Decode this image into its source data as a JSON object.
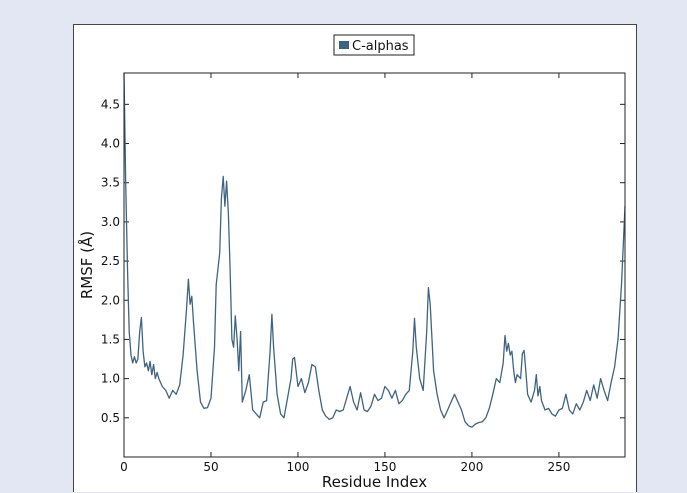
{
  "chart_data": {
    "type": "line",
    "title": "",
    "xlabel": "Residue Index",
    "ylabel": "RMSF (Å)",
    "xlim": [
      0,
      288
    ],
    "ylim": [
      0,
      4.9
    ],
    "xticks": [
      0,
      50,
      100,
      150,
      200,
      250
    ],
    "yticks": [
      0.5,
      1.0,
      1.5,
      2.0,
      2.5,
      3.0,
      3.5,
      4.0,
      4.5
    ],
    "grid": false,
    "legend_position": "top-center",
    "series": [
      {
        "name": "C-alphas",
        "color": "#3f6482",
        "points": [
          [
            0,
            4.9
          ],
          [
            1,
            3.5
          ],
          [
            2,
            2.4
          ],
          [
            3,
            1.6
          ],
          [
            4,
            1.3
          ],
          [
            5,
            1.2
          ],
          [
            6,
            1.28
          ],
          [
            7,
            1.2
          ],
          [
            8,
            1.25
          ],
          [
            9,
            1.6
          ],
          [
            10,
            1.78
          ],
          [
            11,
            1.35
          ],
          [
            12,
            1.15
          ],
          [
            13,
            1.2
          ],
          [
            14,
            1.1
          ],
          [
            15,
            1.22
          ],
          [
            16,
            1.05
          ],
          [
            17,
            1.18
          ],
          [
            18,
            1.0
          ],
          [
            19,
            1.08
          ],
          [
            20,
            1.0
          ],
          [
            22,
            0.9
          ],
          [
            24,
            0.85
          ],
          [
            26,
            0.75
          ],
          [
            28,
            0.85
          ],
          [
            30,
            0.8
          ],
          [
            32,
            0.92
          ],
          [
            34,
            1.3
          ],
          [
            36,
            1.9
          ],
          [
            37,
            2.27
          ],
          [
            38,
            1.95
          ],
          [
            39,
            2.05
          ],
          [
            40,
            1.7
          ],
          [
            42,
            1.1
          ],
          [
            44,
            0.7
          ],
          [
            46,
            0.62
          ],
          [
            48,
            0.63
          ],
          [
            50,
            0.75
          ],
          [
            52,
            1.4
          ],
          [
            53,
            2.2
          ],
          [
            55,
            2.6
          ],
          [
            56,
            3.3
          ],
          [
            57,
            3.58
          ],
          [
            58,
            3.2
          ],
          [
            59,
            3.52
          ],
          [
            60,
            3.1
          ],
          [
            61,
            2.4
          ],
          [
            62,
            1.5
          ],
          [
            63,
            1.4
          ],
          [
            64,
            1.8
          ],
          [
            65,
            1.5
          ],
          [
            66,
            1.1
          ],
          [
            67,
            1.6
          ],
          [
            68,
            0.7
          ],
          [
            70,
            0.85
          ],
          [
            72,
            1.05
          ],
          [
            74,
            0.6
          ],
          [
            76,
            0.55
          ],
          [
            78,
            0.5
          ],
          [
            80,
            0.7
          ],
          [
            82,
            0.72
          ],
          [
            84,
            1.35
          ],
          [
            85,
            1.82
          ],
          [
            86,
            1.4
          ],
          [
            88,
            0.8
          ],
          [
            90,
            0.55
          ],
          [
            92,
            0.5
          ],
          [
            94,
            0.75
          ],
          [
            96,
            1.0
          ],
          [
            97,
            1.25
          ],
          [
            98,
            1.27
          ],
          [
            100,
            0.9
          ],
          [
            102,
            1.0
          ],
          [
            104,
            0.82
          ],
          [
            106,
            0.95
          ],
          [
            108,
            1.18
          ],
          [
            110,
            1.15
          ],
          [
            112,
            0.85
          ],
          [
            114,
            0.6
          ],
          [
            116,
            0.52
          ],
          [
            118,
            0.48
          ],
          [
            120,
            0.5
          ],
          [
            122,
            0.6
          ],
          [
            124,
            0.58
          ],
          [
            126,
            0.6
          ],
          [
            128,
            0.75
          ],
          [
            130,
            0.9
          ],
          [
            132,
            0.7
          ],
          [
            134,
            0.6
          ],
          [
            136,
            0.82
          ],
          [
            138,
            0.6
          ],
          [
            140,
            0.58
          ],
          [
            142,
            0.65
          ],
          [
            144,
            0.8
          ],
          [
            146,
            0.72
          ],
          [
            148,
            0.75
          ],
          [
            150,
            0.9
          ],
          [
            152,
            0.85
          ],
          [
            154,
            0.75
          ],
          [
            156,
            0.85
          ],
          [
            158,
            0.68
          ],
          [
            160,
            0.72
          ],
          [
            162,
            0.8
          ],
          [
            164,
            0.85
          ],
          [
            166,
            1.35
          ],
          [
            167,
            1.77
          ],
          [
            168,
            1.4
          ],
          [
            170,
            1.0
          ],
          [
            172,
            0.85
          ],
          [
            174,
            1.6
          ],
          [
            175,
            2.16
          ],
          [
            176,
            1.95
          ],
          [
            178,
            1.1
          ],
          [
            180,
            0.8
          ],
          [
            182,
            0.6
          ],
          [
            184,
            0.5
          ],
          [
            186,
            0.6
          ],
          [
            188,
            0.7
          ],
          [
            190,
            0.8
          ],
          [
            192,
            0.7
          ],
          [
            194,
            0.6
          ],
          [
            196,
            0.45
          ],
          [
            198,
            0.4
          ],
          [
            200,
            0.38
          ],
          [
            202,
            0.42
          ],
          [
            204,
            0.44
          ],
          [
            206,
            0.45
          ],
          [
            208,
            0.5
          ],
          [
            210,
            0.62
          ],
          [
            212,
            0.8
          ],
          [
            214,
            1.0
          ],
          [
            216,
            0.95
          ],
          [
            218,
            1.2
          ],
          [
            219,
            1.55
          ],
          [
            220,
            1.35
          ],
          [
            221,
            1.45
          ],
          [
            222,
            1.3
          ],
          [
            223,
            1.35
          ],
          [
            224,
            1.1
          ],
          [
            225,
            0.95
          ],
          [
            226,
            1.05
          ],
          [
            228,
            1.0
          ],
          [
            229,
            1.32
          ],
          [
            230,
            1.36
          ],
          [
            231,
            1.1
          ],
          [
            232,
            0.8
          ],
          [
            234,
            0.7
          ],
          [
            236,
            0.85
          ],
          [
            237,
            1.05
          ],
          [
            238,
            0.78
          ],
          [
            239,
            0.9
          ],
          [
            240,
            0.72
          ],
          [
            242,
            0.6
          ],
          [
            244,
            0.62
          ],
          [
            246,
            0.55
          ],
          [
            248,
            0.52
          ],
          [
            250,
            0.6
          ],
          [
            252,
            0.62
          ],
          [
            254,
            0.8
          ],
          [
            256,
            0.6
          ],
          [
            258,
            0.55
          ],
          [
            260,
            0.68
          ],
          [
            262,
            0.6
          ],
          [
            264,
            0.7
          ],
          [
            266,
            0.85
          ],
          [
            268,
            0.72
          ],
          [
            270,
            0.92
          ],
          [
            272,
            0.75
          ],
          [
            274,
            1.0
          ],
          [
            276,
            0.85
          ],
          [
            278,
            0.72
          ],
          [
            280,
            0.95
          ],
          [
            282,
            1.15
          ],
          [
            284,
            1.5
          ],
          [
            286,
            2.2
          ],
          [
            288,
            3.2
          ]
        ]
      }
    ]
  }
}
